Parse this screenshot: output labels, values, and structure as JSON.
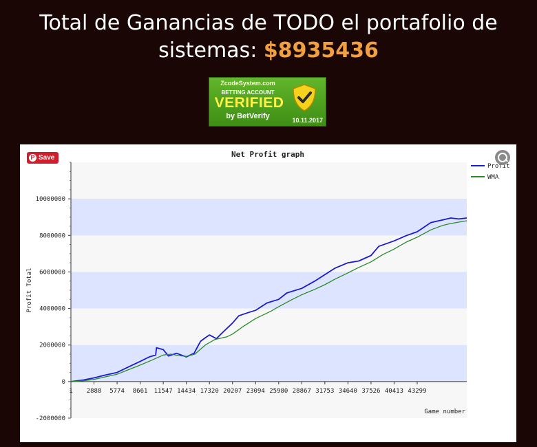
{
  "header": {
    "line1": "Total de Ganancias de TODO el portafolio de",
    "line2_prefix": "sistemas: ",
    "amount": "$8935436"
  },
  "badge": {
    "site": "ZcodeSystem.com",
    "account": "BETTING ACCOUNT",
    "verified": "VERIFIED",
    "by": "by BetVerify",
    "date": "10.11.2017",
    "icon": "shield-check-icon"
  },
  "pin_button": {
    "label": "Save",
    "icon": "pinterest-icon"
  },
  "zoom_icon": "zoom-icon",
  "colors": {
    "profit": "#1a1ad0",
    "wma": "#2a8a2a",
    "band": "#dde4ff",
    "amount": "#f0a040"
  },
  "chart_data": {
    "type": "line",
    "title": "Net Profit graph",
    "xlabel": "Game number",
    "ylabel": "Profit Total",
    "xlim": [
      0,
      49500
    ],
    "ylim": [
      -2000000,
      12000000
    ],
    "x_ticks": [
      1,
      2888,
      5774,
      8661,
      11547,
      14434,
      17320,
      20207,
      23094,
      25980,
      28867,
      31753,
      34640,
      37526,
      40413,
      43299
    ],
    "y_ticks": [
      -2000000,
      0,
      2000000,
      4000000,
      6000000,
      8000000,
      10000000
    ],
    "y_tick_labels": [
      "-2000000",
      "0",
      "2000000",
      "4000000",
      "6000000",
      "8000000",
      "10000000"
    ],
    "legend": "top-right",
    "grid": "alternating horizontal bands",
    "series": [
      {
        "name": "Profit",
        "x": [
          0,
          1500,
          2888,
          4200,
          5774,
          7200,
          8661,
          9800,
          10600,
          10700,
          11547,
          12200,
          13200,
          14434,
          15400,
          16200,
          16800,
          17320,
          18200,
          19000,
          20207,
          21000,
          22000,
          23094,
          24500,
          25980,
          27000,
          28867,
          30500,
          31753,
          33000,
          34640,
          36000,
          37526,
          38500,
          40413,
          42000,
          43299,
          45000,
          46500,
          47500,
          48500,
          49500
        ],
        "y": [
          0,
          80000,
          200000,
          350000,
          500000,
          800000,
          1100000,
          1350000,
          1450000,
          1850000,
          1750000,
          1400000,
          1550000,
          1350000,
          1550000,
          2200000,
          2400000,
          2550000,
          2350000,
          2700000,
          3200000,
          3600000,
          3750000,
          3900000,
          4300000,
          4500000,
          4850000,
          5100000,
          5500000,
          5850000,
          6200000,
          6500000,
          6600000,
          6900000,
          7400000,
          7700000,
          8000000,
          8200000,
          8700000,
          8850000,
          8950000,
          8900000,
          8950000
        ]
      },
      {
        "name": "WMA",
        "x": [
          0,
          1500,
          2888,
          4200,
          5774,
          7200,
          8661,
          10000,
          11547,
          12500,
          13500,
          14434,
          15500,
          16800,
          18000,
          19500,
          20207,
          21500,
          23094,
          25000,
          25980,
          27500,
          28867,
          30500,
          31753,
          33000,
          34640,
          36000,
          37526,
          39000,
          40413,
          42000,
          43299,
          45000,
          46500,
          47500,
          49500
        ],
        "y": [
          0,
          40000,
          120000,
          250000,
          400000,
          650000,
          900000,
          1150000,
          1450000,
          1500000,
          1420000,
          1380000,
          1500000,
          2000000,
          2300000,
          2450000,
          2600000,
          3000000,
          3450000,
          3850000,
          4100000,
          4450000,
          4750000,
          5050000,
          5300000,
          5600000,
          5950000,
          6250000,
          6550000,
          6950000,
          7250000,
          7650000,
          7900000,
          8300000,
          8550000,
          8650000,
          8800000
        ]
      }
    ]
  }
}
